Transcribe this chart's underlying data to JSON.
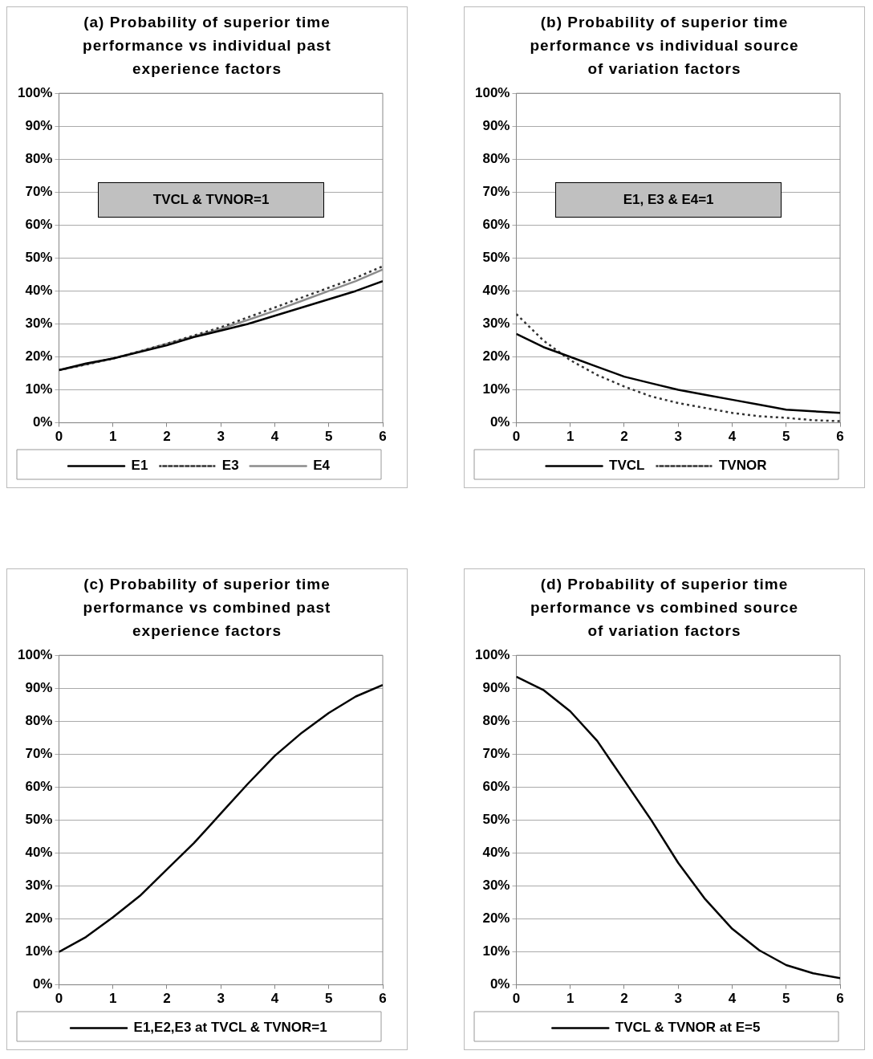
{
  "chart_data": [
    {
      "type": "line",
      "title": "(a) Probability of superior time performance vs individual past experience factors",
      "x": [
        0,
        0.5,
        1,
        1.5,
        2,
        2.5,
        3,
        3.5,
        4,
        4.5,
        5,
        5.5,
        6
      ],
      "series": [
        {
          "name": "E1",
          "color": "#000000",
          "line_style": "solid",
          "values": [
            16,
            18,
            19.5,
            21.5,
            23.5,
            26,
            28,
            30,
            32.5,
            35,
            37.5,
            40,
            43
          ]
        },
        {
          "name": "E3",
          "color": "#333333",
          "line_style": "dotted",
          "values": [
            16,
            17.7,
            19.5,
            21.7,
            24,
            26.5,
            29,
            32,
            35,
            38,
            41,
            44,
            47.5
          ]
        },
        {
          "name": "E4",
          "color": "#8c8c8c",
          "line_style": "solid",
          "values": [
            16,
            17.7,
            19.5,
            21.7,
            24,
            26.2,
            28.5,
            31.2,
            34,
            37,
            40,
            43,
            46.5
          ]
        }
      ],
      "xlim": [
        0,
        6
      ],
      "xticks": [
        0,
        1,
        2,
        3,
        4,
        5,
        6
      ],
      "ylim": [
        0,
        100
      ],
      "yticks": [
        {
          "value": 0,
          "label": "0%"
        },
        {
          "value": 10,
          "label": "10%"
        },
        {
          "value": 20,
          "label": "20%"
        },
        {
          "value": 30,
          "label": "30%"
        },
        {
          "value": 40,
          "label": "40%"
        },
        {
          "value": 50,
          "label": "50%"
        },
        {
          "value": 60,
          "label": "60%"
        },
        {
          "value": 70,
          "label": "70%"
        },
        {
          "value": 80,
          "label": "80%"
        },
        {
          "value": 90,
          "label": "90%"
        },
        {
          "value": 100,
          "label": "100%"
        }
      ],
      "grid": "y",
      "legend": "bottom",
      "marker": "none",
      "annotations": [
        "TVCL & TVNOR=1"
      ]
    },
    {
      "type": "line",
      "title": "(b) Probability of superior time performance vs individual source of variation factors",
      "x": [
        0,
        0.5,
        1,
        1.5,
        2,
        2.5,
        3,
        3.5,
        4,
        4.5,
        5,
        5.5,
        6
      ],
      "series": [
        {
          "name": "TVCL",
          "color": "#000000",
          "line_style": "solid",
          "values": [
            27,
            23,
            20,
            17,
            14,
            12,
            10,
            8.5,
            7,
            5.5,
            4,
            3.5,
            3
          ]
        },
        {
          "name": "TVNOR",
          "color": "#333333",
          "line_style": "dotted",
          "values": [
            33,
            25,
            19,
            14.5,
            11,
            8,
            6,
            4.5,
            3,
            2,
            1.5,
            0.8,
            0.5
          ]
        }
      ],
      "xlim": [
        0,
        6
      ],
      "xticks": [
        0,
        1,
        2,
        3,
        4,
        5,
        6
      ],
      "ylim": [
        0,
        100
      ],
      "yticks": [
        {
          "value": 0,
          "label": "0%"
        },
        {
          "value": 10,
          "label": "10%"
        },
        {
          "value": 20,
          "label": "20%"
        },
        {
          "value": 30,
          "label": "30%"
        },
        {
          "value": 40,
          "label": "40%"
        },
        {
          "value": 50,
          "label": "50%"
        },
        {
          "value": 60,
          "label": "60%"
        },
        {
          "value": 70,
          "label": "70%"
        },
        {
          "value": 80,
          "label": "80%"
        },
        {
          "value": 90,
          "label": "90%"
        },
        {
          "value": 100,
          "label": "100%"
        }
      ],
      "grid": "y",
      "legend": "bottom",
      "marker": "none",
      "annotations": [
        "E1, E3 & E4=1"
      ]
    },
    {
      "type": "line",
      "title": "(c) Probability of superior time performance vs combined past experience factors",
      "x": [
        0,
        0.5,
        1,
        1.5,
        2,
        2.5,
        3,
        3.5,
        4,
        4.5,
        5,
        5.5,
        6
      ],
      "series": [
        {
          "name": "E1,E2,E3 at TVCL & TVNOR=1",
          "color": "#000000",
          "line_style": "solid",
          "values": [
            10,
            14.5,
            20.5,
            27,
            35,
            43,
            52,
            61,
            69.5,
            76.5,
            82.5,
            87.5,
            91
          ]
        }
      ],
      "xlim": [
        0,
        6
      ],
      "xticks": [
        0,
        1,
        2,
        3,
        4,
        5,
        6
      ],
      "ylim": [
        0,
        100
      ],
      "yticks": [
        {
          "value": 0,
          "label": "0%"
        },
        {
          "value": 10,
          "label": "10%"
        },
        {
          "value": 20,
          "label": "20%"
        },
        {
          "value": 30,
          "label": "30%"
        },
        {
          "value": 40,
          "label": "40%"
        },
        {
          "value": 50,
          "label": "50%"
        },
        {
          "value": 60,
          "label": "60%"
        },
        {
          "value": 70,
          "label": "70%"
        },
        {
          "value": 80,
          "label": "80%"
        },
        {
          "value": 90,
          "label": "90%"
        },
        {
          "value": 100,
          "label": "100%"
        }
      ],
      "grid": "y",
      "legend": "bottom",
      "marker": "none"
    },
    {
      "type": "line",
      "title": "(d) Probability of superior time performance vs combined source of variation factors",
      "x": [
        0,
        0.5,
        1,
        1.5,
        2,
        2.5,
        3,
        3.5,
        4,
        4.5,
        5,
        5.5,
        6
      ],
      "series": [
        {
          "name": "TVCL & TVNOR at E=5",
          "color": "#000000",
          "line_style": "solid",
          "values": [
            93.5,
            89.5,
            83,
            74,
            62,
            50,
            37,
            26,
            17,
            10.5,
            6,
            3.5,
            2
          ]
        }
      ],
      "xlim": [
        0,
        6
      ],
      "xticks": [
        0,
        1,
        2,
        3,
        4,
        5,
        6
      ],
      "ylim": [
        0,
        100
      ],
      "yticks": [
        {
          "value": 0,
          "label": "0%"
        },
        {
          "value": 10,
          "label": "10%"
        },
        {
          "value": 20,
          "label": "20%"
        },
        {
          "value": 30,
          "label": "30%"
        },
        {
          "value": 40,
          "label": "40%"
        },
        {
          "value": 50,
          "label": "50%"
        },
        {
          "value": 60,
          "label": "60%"
        },
        {
          "value": 70,
          "label": "70%"
        },
        {
          "value": 80,
          "label": "80%"
        },
        {
          "value": 90,
          "label": "90%"
        },
        {
          "value": 100,
          "label": "100%"
        }
      ],
      "grid": "y",
      "legend": "bottom",
      "marker": "none"
    }
  ]
}
